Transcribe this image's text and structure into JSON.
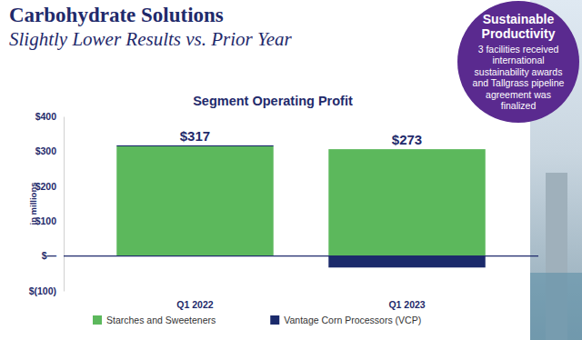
{
  "header": {
    "title": "Carbohydrate Solutions",
    "subtitle": "Slightly Lower Results vs. Prior Year"
  },
  "callout": {
    "title": "Sustainable Productivity",
    "text": "3 facilities received international sustainability awards and Tallgrass pipeline agreement was finalized"
  },
  "chart_data": {
    "type": "bar",
    "stacked": true,
    "title": "Segment Operating Profit",
    "y_label": "in millions",
    "categories": [
      "Q1 2022",
      "Q1 2023"
    ],
    "series": [
      {
        "name": "Starches and Sweeteners",
        "color": "#5cb85c",
        "values": [
          314,
          306
        ]
      },
      {
        "name": "Vantage Corn Processors (VCP)",
        "color": "#1b2a6b",
        "values": [
          3,
          -33
        ]
      }
    ],
    "totals": [
      317,
      273
    ],
    "total_labels": [
      "$317",
      "$273"
    ],
    "ylim": [
      -100,
      400
    ],
    "yticks": [
      {
        "value": 400,
        "label": "$400"
      },
      {
        "value": 300,
        "label": "$300"
      },
      {
        "value": 200,
        "label": "$200"
      },
      {
        "value": 100,
        "label": "$100"
      },
      {
        "value": 0,
        "label": "$—"
      },
      {
        "value": -100,
        "label": "$(100)"
      }
    ],
    "grid": false,
    "legend": "bottom"
  }
}
